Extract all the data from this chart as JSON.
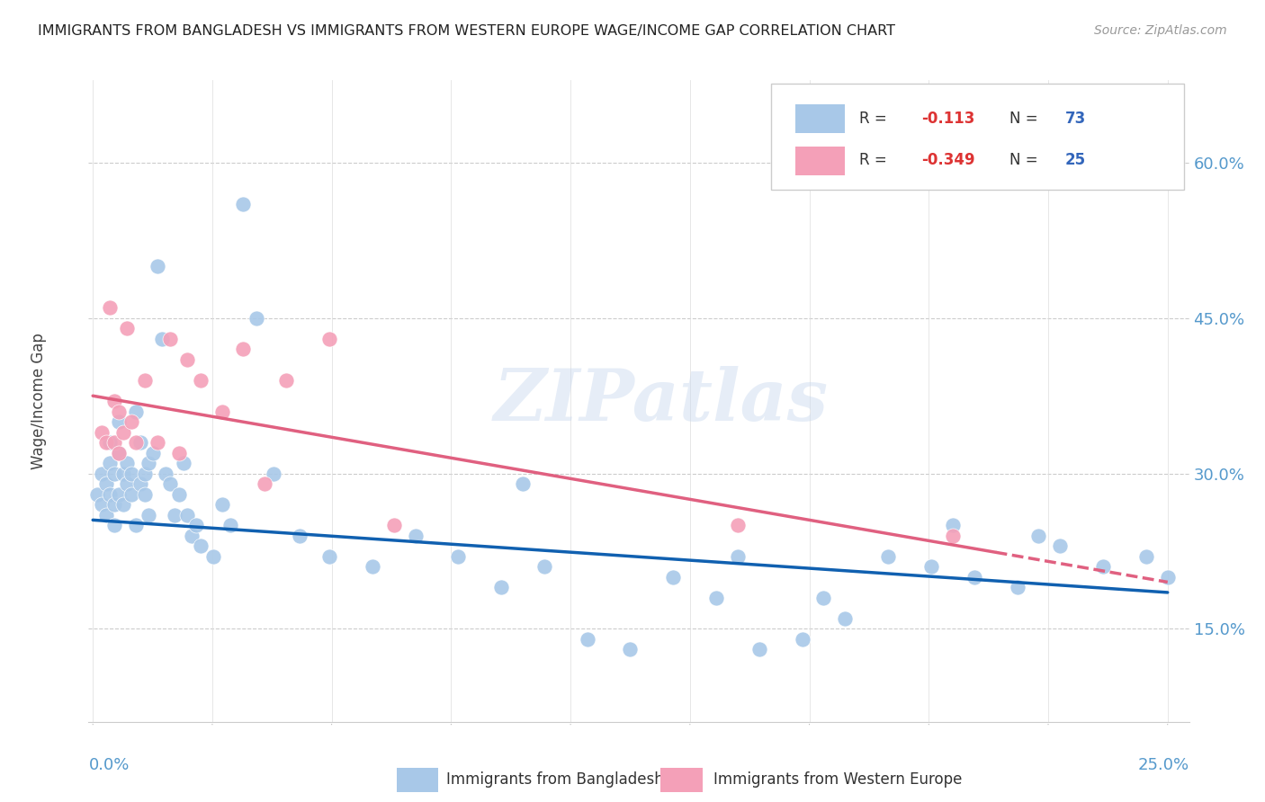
{
  "title": "IMMIGRANTS FROM BANGLADESH VS IMMIGRANTS FROM WESTERN EUROPE WAGE/INCOME GAP CORRELATION CHART",
  "source": "Source: ZipAtlas.com",
  "ylabel": "Wage/Income Gap",
  "ytick_values": [
    0.15,
    0.3,
    0.45,
    0.6
  ],
  "xlim": [
    -0.001,
    0.255
  ],
  "ylim": [
    0.06,
    0.68
  ],
  "color_blue": "#a8c8e8",
  "color_pink": "#f4a0b8",
  "trend_blue": "#1060b0",
  "trend_pink": "#e06080",
  "watermark": "ZIPatlas",
  "blue_slope": -0.28,
  "blue_intercept": 0.255,
  "pink_slope": -0.72,
  "pink_intercept": 0.375,
  "blue_x": [
    0.001,
    0.002,
    0.002,
    0.003,
    0.003,
    0.004,
    0.004,
    0.004,
    0.005,
    0.005,
    0.005,
    0.006,
    0.006,
    0.006,
    0.007,
    0.007,
    0.008,
    0.008,
    0.009,
    0.009,
    0.01,
    0.01,
    0.011,
    0.011,
    0.012,
    0.012,
    0.013,
    0.013,
    0.014,
    0.015,
    0.016,
    0.017,
    0.018,
    0.019,
    0.02,
    0.021,
    0.022,
    0.023,
    0.024,
    0.025,
    0.028,
    0.03,
    0.032,
    0.035,
    0.038,
    0.042,
    0.048,
    0.055,
    0.065,
    0.075,
    0.085,
    0.095,
    0.105,
    0.115,
    0.125,
    0.135,
    0.145,
    0.155,
    0.165,
    0.175,
    0.185,
    0.195,
    0.205,
    0.215,
    0.225,
    0.235,
    0.245,
    0.25,
    0.1,
    0.15,
    0.17,
    0.2,
    0.22
  ],
  "blue_y": [
    0.28,
    0.27,
    0.3,
    0.26,
    0.29,
    0.31,
    0.28,
    0.33,
    0.27,
    0.3,
    0.25,
    0.32,
    0.28,
    0.35,
    0.3,
    0.27,
    0.31,
    0.29,
    0.28,
    0.3,
    0.36,
    0.25,
    0.33,
    0.29,
    0.3,
    0.28,
    0.31,
    0.26,
    0.32,
    0.5,
    0.43,
    0.3,
    0.29,
    0.26,
    0.28,
    0.31,
    0.26,
    0.24,
    0.25,
    0.23,
    0.22,
    0.27,
    0.25,
    0.56,
    0.45,
    0.3,
    0.24,
    0.22,
    0.21,
    0.24,
    0.22,
    0.19,
    0.21,
    0.14,
    0.13,
    0.2,
    0.18,
    0.13,
    0.14,
    0.16,
    0.22,
    0.21,
    0.2,
    0.19,
    0.23,
    0.21,
    0.22,
    0.2,
    0.29,
    0.22,
    0.18,
    0.25,
    0.24
  ],
  "pink_x": [
    0.002,
    0.003,
    0.004,
    0.005,
    0.005,
    0.006,
    0.006,
    0.007,
    0.008,
    0.009,
    0.01,
    0.012,
    0.015,
    0.018,
    0.02,
    0.022,
    0.025,
    0.03,
    0.035,
    0.04,
    0.045,
    0.055,
    0.07,
    0.15,
    0.2
  ],
  "pink_y": [
    0.34,
    0.33,
    0.46,
    0.37,
    0.33,
    0.36,
    0.32,
    0.34,
    0.44,
    0.35,
    0.33,
    0.39,
    0.33,
    0.43,
    0.32,
    0.41,
    0.39,
    0.36,
    0.42,
    0.29,
    0.39,
    0.43,
    0.25,
    0.25,
    0.24
  ]
}
